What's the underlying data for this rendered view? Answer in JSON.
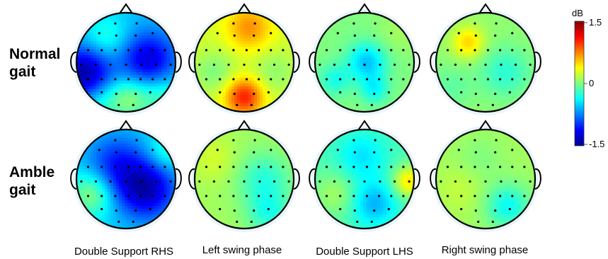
{
  "rows": [
    {
      "label_line1": "Normal",
      "label_line2": "gait"
    },
    {
      "label_line1": "Amble",
      "label_line2": "gait"
    }
  ],
  "columns": [
    "Double Support RHS",
    "Left swing phase",
    "Double Support LHS",
    "Right swing phase"
  ],
  "colorbar": {
    "unit": "dB",
    "max_label": "1.5",
    "mid_label": "0",
    "min_label": "-1.5",
    "min": -1.5,
    "max": 1.5,
    "colors": [
      "#00008f",
      "#0000ff",
      "#0080ff",
      "#00ffff",
      "#80ff80",
      "#ffff00",
      "#ff8000",
      "#ff0000",
      "#800000"
    ]
  },
  "maps": [
    {
      "row": 0,
      "col": 0,
      "base": -0.55,
      "blobs": [
        {
          "u": -0.85,
          "v": 0.25,
          "a": -0.9,
          "s": 0.3
        },
        {
          "u": 0.45,
          "v": -0.05,
          "a": -0.7,
          "s": 0.3
        },
        {
          "u": -0.4,
          "v": -0.5,
          "a": 0.3,
          "s": 0.2
        },
        {
          "u": 0.05,
          "v": 0.75,
          "a": 0.55,
          "s": 0.2
        },
        {
          "u": 0.75,
          "v": 0.7,
          "a": 0.35,
          "s": 0.2
        },
        {
          "u": -0.6,
          "v": 0.8,
          "a": 0.3,
          "s": 0.2
        }
      ]
    },
    {
      "row": 0,
      "col": 1,
      "base": 0.25,
      "blobs": [
        {
          "u": 0.1,
          "v": -0.7,
          "a": 0.45,
          "s": 0.2
        },
        {
          "u": 0.0,
          "v": 0.7,
          "a": 0.8,
          "s": 0.14
        },
        {
          "u": -0.6,
          "v": 0.2,
          "a": -0.25,
          "s": 0.2
        },
        {
          "u": 0.6,
          "v": 0.2,
          "a": -0.2,
          "s": 0.2
        }
      ]
    },
    {
      "row": 0,
      "col": 2,
      "base": 0.0,
      "blobs": [
        {
          "u": 0.05,
          "v": 0.0,
          "a": -0.55,
          "s": 0.15
        },
        {
          "u": -0.6,
          "v": 0.35,
          "a": -0.3,
          "s": 0.1
        },
        {
          "u": 0.2,
          "v": 0.55,
          "a": -0.35,
          "s": 0.08
        },
        {
          "u": 0.7,
          "v": -0.6,
          "a": 0.1,
          "s": 0.2
        }
      ]
    },
    {
      "row": 0,
      "col": 3,
      "base": 0.05,
      "blobs": [
        {
          "u": -0.35,
          "v": -0.4,
          "a": 0.45,
          "s": 0.1
        },
        {
          "u": 0.4,
          "v": 0.2,
          "a": -0.3,
          "s": 0.25
        },
        {
          "u": -0.7,
          "v": 0.5,
          "a": -0.15,
          "s": 0.2
        }
      ]
    },
    {
      "row": 1,
      "col": 0,
      "base": -0.5,
      "blobs": [
        {
          "u": 0.4,
          "v": 0.2,
          "a": -0.85,
          "s": 0.35
        },
        {
          "u": -0.2,
          "v": -0.3,
          "a": -0.5,
          "s": 0.35
        },
        {
          "u": -0.7,
          "v": 0.3,
          "a": 0.55,
          "s": 0.2
        },
        {
          "u": 0.8,
          "v": -0.55,
          "a": 0.3,
          "s": 0.15
        }
      ]
    },
    {
      "row": 1,
      "col": 1,
      "base": 0.1,
      "blobs": [
        {
          "u": 0.4,
          "v": 0.0,
          "a": -0.35,
          "s": 0.3
        },
        {
          "u": 0.5,
          "v": 0.7,
          "a": -0.35,
          "s": 0.2
        },
        {
          "u": -0.6,
          "v": -0.4,
          "a": 0.15,
          "s": 0.2
        }
      ]
    },
    {
      "row": 1,
      "col": 2,
      "base": -0.15,
      "blobs": [
        {
          "u": -0.05,
          "v": -0.45,
          "a": -0.3,
          "s": 0.25
        },
        {
          "u": 0.2,
          "v": 0.5,
          "a": -0.45,
          "s": 0.2
        },
        {
          "u": 0.9,
          "v": 0.05,
          "a": 0.6,
          "s": 0.1
        },
        {
          "u": -0.6,
          "v": 0.3,
          "a": 0.25,
          "s": 0.2
        }
      ]
    },
    {
      "row": 1,
      "col": 3,
      "base": 0.1,
      "blobs": [
        {
          "u": 0.45,
          "v": 0.55,
          "a": -0.45,
          "s": 0.2
        },
        {
          "u": -0.1,
          "v": -0.4,
          "a": -0.1,
          "s": 0.2
        },
        {
          "u": -0.5,
          "v": 0.2,
          "a": 0.1,
          "s": 0.2
        }
      ]
    }
  ]
}
